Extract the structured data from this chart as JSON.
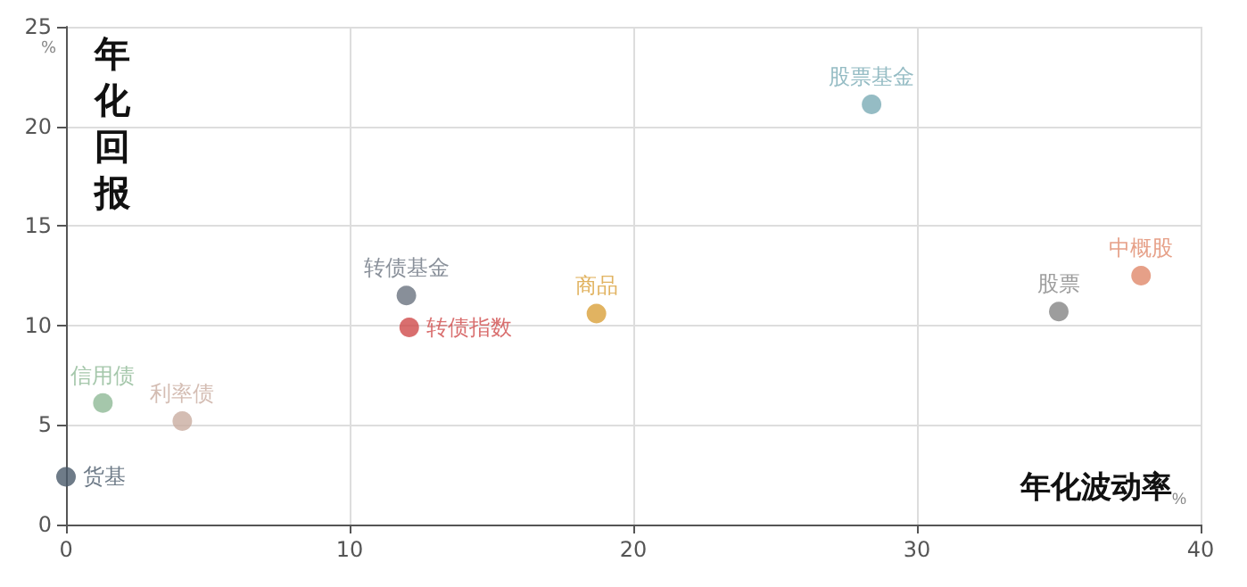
{
  "chart_data": {
    "type": "scatter",
    "xlabel": "年化波动率$_{%}$",
    "ylabel": "年化回报",
    "annotations": [
      "%"
    ],
    "xlim": [
      0,
      40
    ],
    "xticks": [
      0,
      10,
      20,
      30,
      40
    ],
    "ylim": [
      0,
      25
    ],
    "yticks": [
      0,
      5,
      10,
      15,
      20,
      25
    ],
    "grid": true,
    "legend": false,
    "marker": "circle",
    "series": [
      {
        "name": "货基",
        "color": "#4a5a6a",
        "x": [
          0
        ],
        "values": [
          2.4
        ]
      },
      {
        "name": "信用债",
        "color": "#8fb996",
        "x": [
          1.3
        ],
        "values": [
          6.1
        ]
      },
      {
        "name": "利率债",
        "color": "#c9aca0",
        "x": [
          4.1
        ],
        "values": [
          5.2
        ]
      },
      {
        "name": "转债基金",
        "color": "#6a7380",
        "x": [
          12.0
        ],
        "values": [
          11.5
        ]
      },
      {
        "name": "转债指数",
        "color": "#d04a4a",
        "x": [
          12.1
        ],
        "values": [
          9.9
        ]
      },
      {
        "name": "商品",
        "color": "#d9a03a",
        "x": [
          18.7
        ],
        "values": [
          10.6
        ]
      },
      {
        "name": "股票基金",
        "color": "#7aabb5",
        "x": [
          28.4
        ],
        "values": [
          21.1
        ]
      },
      {
        "name": "股票",
        "color": "#858585",
        "x": [
          35.0
        ],
        "values": [
          10.7
        ]
      },
      {
        "name": "中概股",
        "color": "#e0886a",
        "x": [
          37.9
        ],
        "values": [
          12.5
        ]
      }
    ]
  }
}
